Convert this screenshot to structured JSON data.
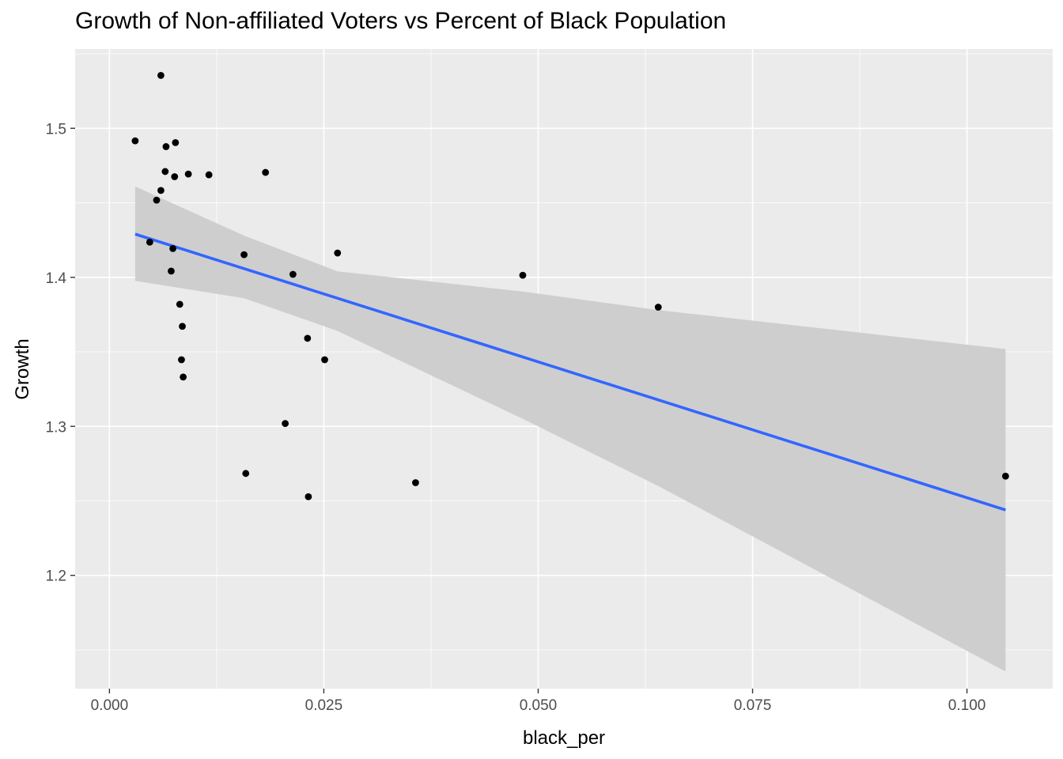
{
  "chart_data": {
    "type": "scatter",
    "title": "Growth of Non-affiliated Voters vs Percent of Black Population",
    "xlabel": "black_per",
    "ylabel": "Growth",
    "xlim": [
      -0.004,
      0.11
    ],
    "ylim": [
      1.124,
      1.5532
    ],
    "grid": true,
    "x_ticks": [
      0.0,
      0.025,
      0.05,
      0.075,
      0.1
    ],
    "x_tick_labels": [
      "0.000",
      "0.025",
      "0.050",
      "0.075",
      "0.100"
    ],
    "y_ticks": [
      1.2,
      1.3,
      1.4,
      1.5
    ],
    "y_tick_labels": [
      "1.2",
      "1.3",
      "1.4",
      "1.5"
    ],
    "points": [
      {
        "x": 0.003,
        "y": 1.4916
      },
      {
        "x": 0.0047,
        "y": 1.4236
      },
      {
        "x": 0.0055,
        "y": 1.4518
      },
      {
        "x": 0.006,
        "y": 1.5355
      },
      {
        "x": 0.006,
        "y": 1.4583
      },
      {
        "x": 0.0065,
        "y": 1.471
      },
      {
        "x": 0.0066,
        "y": 1.4877
      },
      {
        "x": 0.0072,
        "y": 1.4042
      },
      {
        "x": 0.0074,
        "y": 1.4193
      },
      {
        "x": 0.0076,
        "y": 1.4675
      },
      {
        "x": 0.0077,
        "y": 1.4904
      },
      {
        "x": 0.0082,
        "y": 1.3819
      },
      {
        "x": 0.0084,
        "y": 1.3447
      },
      {
        "x": 0.0085,
        "y": 1.3671
      },
      {
        "x": 0.0086,
        "y": 1.3331
      },
      {
        "x": 0.0092,
        "y": 1.4693
      },
      {
        "x": 0.0116,
        "y": 1.4688
      },
      {
        "x": 0.0157,
        "y": 1.4152
      },
      {
        "x": 0.0159,
        "y": 1.2684
      },
      {
        "x": 0.0182,
        "y": 1.4704
      },
      {
        "x": 0.0205,
        "y": 1.3019
      },
      {
        "x": 0.0214,
        "y": 1.402
      },
      {
        "x": 0.0231,
        "y": 1.3591
      },
      {
        "x": 0.0232,
        "y": 1.2528
      },
      {
        "x": 0.0251,
        "y": 1.3447
      },
      {
        "x": 0.0266,
        "y": 1.4163
      },
      {
        "x": 0.0357,
        "y": 1.2622
      },
      {
        "x": 0.0482,
        "y": 1.4014
      },
      {
        "x": 0.064,
        "y": 1.38
      },
      {
        "x": 0.1045,
        "y": 1.2666
      }
    ],
    "fit_line": {
      "method": "linear",
      "color": "#3366ff",
      "x": [
        0.003,
        0.1045
      ],
      "y": [
        1.429,
        1.2439
      ]
    },
    "confidence_band": {
      "fill": "#cccccc",
      "x": [
        0.003,
        0.0157,
        0.0266,
        0.0482,
        0.064,
        0.1045
      ],
      "lower": [
        1.3976,
        1.386,
        1.364,
        1.305,
        1.26,
        1.1355
      ],
      "upper": [
        1.461,
        1.428,
        1.404,
        1.3905,
        1.378,
        1.3519
      ]
    },
    "colors": {
      "panel_background": "#ebebeb",
      "grid_major": "#ffffff",
      "point": "#000000",
      "tick_text": "#4d4d4d"
    }
  }
}
